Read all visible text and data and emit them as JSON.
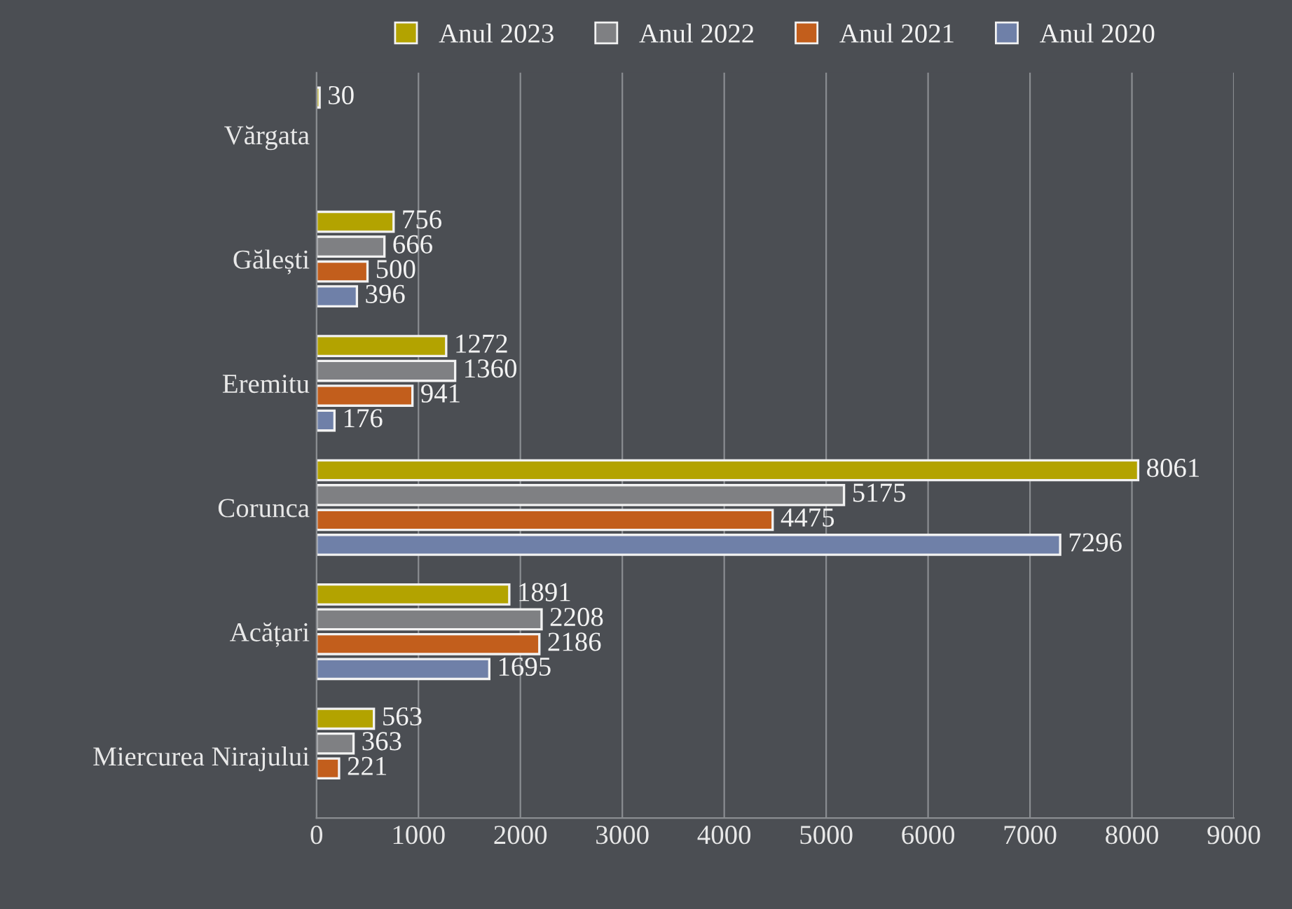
{
  "chart_data": {
    "type": "bar",
    "orientation": "horizontal",
    "categories": [
      "Vărgata",
      "Gălești",
      "Eremitu",
      "Corunca",
      "Acățari",
      "Miercurea Nirajului"
    ],
    "series": [
      {
        "name": "Anul 2023",
        "color": "#b3a300",
        "values": [
          30,
          756,
          1272,
          8061,
          1891,
          563
        ]
      },
      {
        "name": "Anul 2022",
        "color": "#7f8083",
        "values": [
          null,
          666,
          1360,
          5175,
          2208,
          363
        ]
      },
      {
        "name": "Anul 2021",
        "color": "#c25e1c",
        "values": [
          null,
          500,
          941,
          4475,
          2186,
          221
        ]
      },
      {
        "name": "Anul 2020",
        "color": "#6f80a8",
        "values": [
          null,
          396,
          176,
          7296,
          1695,
          null
        ]
      }
    ],
    "xlim": [
      0,
      9000
    ],
    "xticks": [
      0,
      1000,
      2000,
      3000,
      4000,
      5000,
      6000,
      7000,
      8000,
      9000
    ],
    "grid": "x",
    "legend": "top",
    "data_labels": true
  }
}
